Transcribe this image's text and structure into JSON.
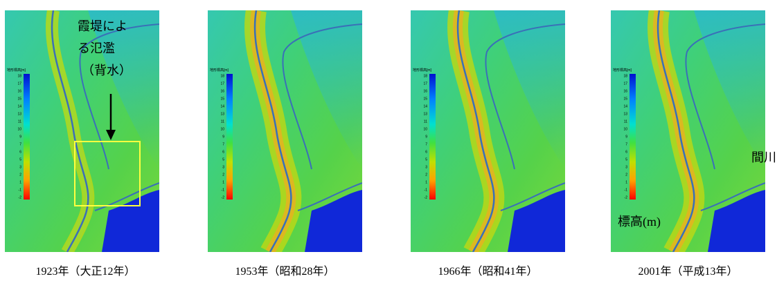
{
  "panels": [
    {
      "caption": "1923年（大正12年）"
    },
    {
      "caption": "1953年（昭和28年）"
    },
    {
      "caption": "1966年（昭和41年）"
    },
    {
      "caption": "2001年（平成13年）"
    }
  ],
  "legend": {
    "title": "地形標高[m]",
    "ticks": [
      18,
      17,
      16,
      15,
      14,
      13,
      11,
      10,
      9,
      7,
      6,
      5,
      3,
      2,
      1,
      -1,
      -2
    ]
  },
  "annotations": {
    "flood": [
      "霞堤によ",
      "る氾濫",
      "（背水）"
    ],
    "river": "間川",
    "elevation": "標高(m)"
  }
}
